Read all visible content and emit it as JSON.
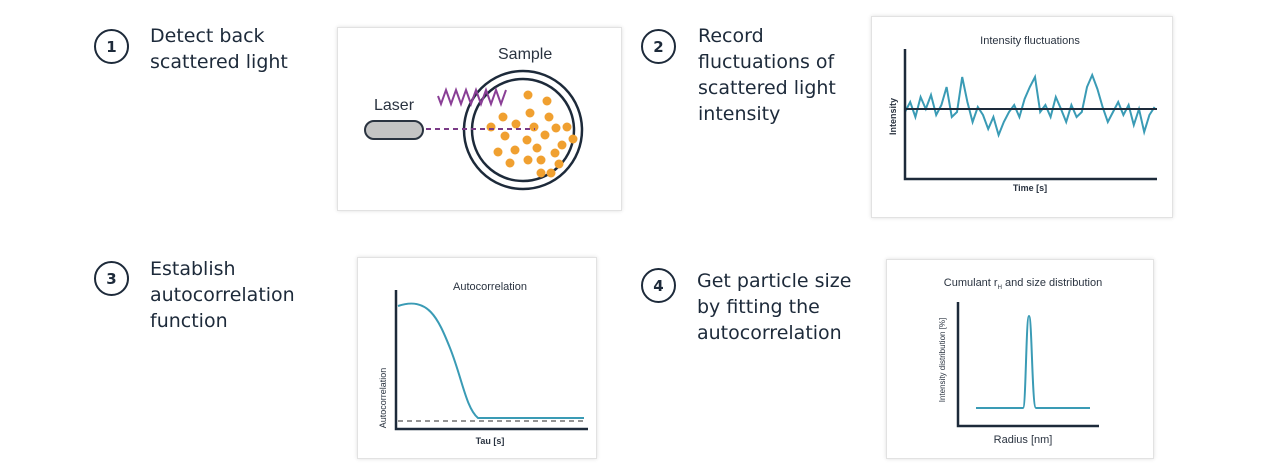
{
  "steps": [
    {
      "number": "1",
      "text": "Detect back scattered light"
    },
    {
      "number": "2",
      "text": "Record fluctuations of scattered light intensity"
    },
    {
      "number": "3",
      "text": "Establish autocorrelation function"
    },
    {
      "number": "4",
      "text": "Get particle size by fitting the autocorrelation"
    }
  ],
  "panel1": {
    "sample_label": "Sample",
    "laser_label": "Laser"
  },
  "panel2": {
    "title": "Intensity fluctuations",
    "ylabel": "Intensity",
    "xlabel": "Time [s]"
  },
  "panel3": {
    "title": "Autocorrelation",
    "ylabel": "Autocorrelation",
    "xlabel": "Tau [s]"
  },
  "panel4": {
    "title": "Cumulant r",
    "title_sub": "H",
    "title_rest": " and size distribution",
    "ylabel": "Intensity distribution [%]",
    "xlabel": "Radius [nm]"
  },
  "colors": {
    "curve": "#3a9bb5",
    "particles": "#f0a030",
    "wave": "#8a3f96",
    "axis": "#1d2a3a"
  }
}
